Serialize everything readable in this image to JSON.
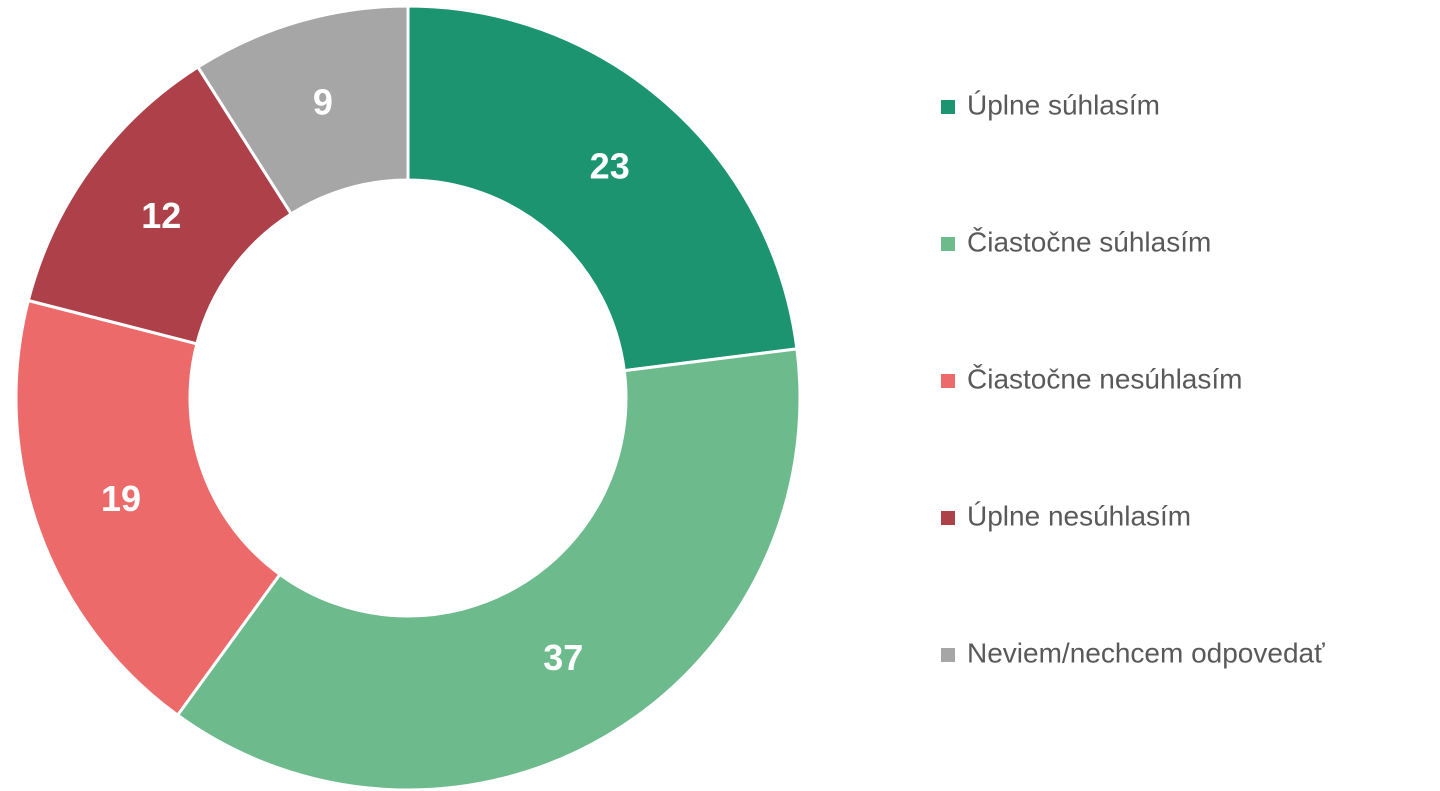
{
  "chart_data": {
    "type": "donut",
    "categories": [
      "Úplne súhlasím",
      "Čiastočne súhlasím",
      "Čiastočne nesúhlasím",
      "Úplne nesúhlasím",
      "Neviem/nechcem odpovedať"
    ],
    "values": [
      23,
      37,
      19,
      12,
      9
    ],
    "colors": [
      "#1c9470",
      "#6dbb8c",
      "#ec6a69",
      "#ad4048",
      "#a6a6a6"
    ],
    "legend": "right"
  }
}
